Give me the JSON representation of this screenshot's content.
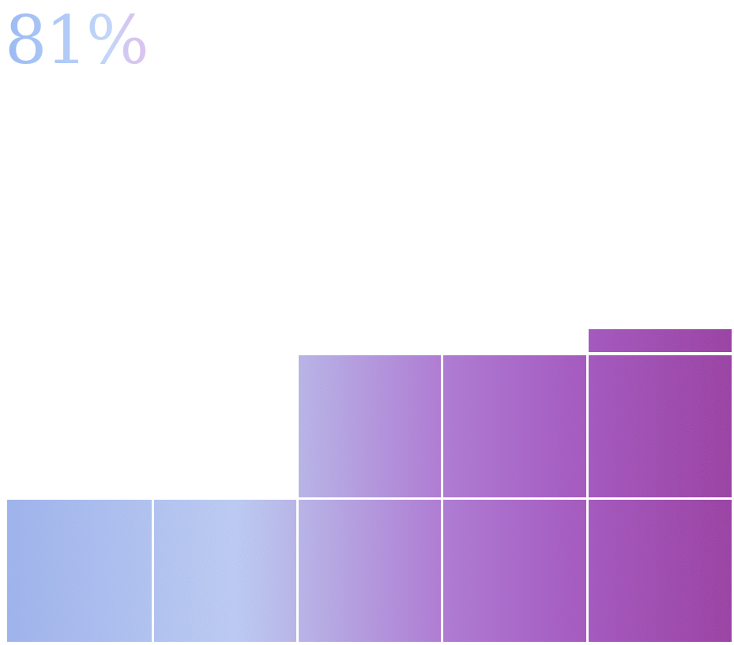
{
  "stat": {
    "text": "81%"
  }
}
